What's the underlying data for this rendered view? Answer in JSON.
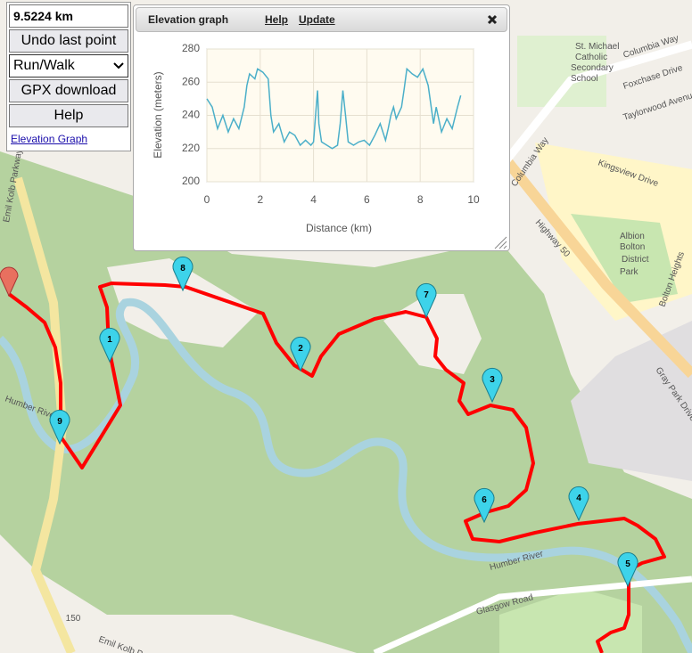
{
  "panel": {
    "distance": "9.5224 km",
    "undo": "Undo last point",
    "mode": "Run/Walk",
    "gpx": "GPX download",
    "help": "Help",
    "graph_link": "Elevation Graph"
  },
  "graph_window": {
    "title": "Elevation graph",
    "help": "Help",
    "update": "Update"
  },
  "chart_data": {
    "type": "line",
    "xlabel": "Distance (km)",
    "ylabel": "Elevation (meters)",
    "color": "#4bafc9",
    "x": [
      0,
      0.2,
      0.4,
      0.6,
      0.8,
      1.0,
      1.2,
      1.4,
      1.5,
      1.6,
      1.8,
      1.9,
      2.1,
      2.3,
      2.4,
      2.5,
      2.7,
      2.9,
      3.1,
      3.3,
      3.5,
      3.7,
      3.9,
      4.0,
      4.1,
      4.15,
      4.2,
      4.3,
      4.5,
      4.7,
      4.9,
      5.0,
      5.1,
      5.2,
      5.3,
      5.5,
      5.7,
      5.9,
      6.1,
      6.3,
      6.5,
      6.7,
      6.8,
      6.9,
      7.0,
      7.1,
      7.3,
      7.4,
      7.5,
      7.7,
      7.9,
      8.1,
      8.3,
      8.5,
      8.6,
      8.8,
      9.0,
      9.2,
      9.4,
      9.52
    ],
    "values": [
      250,
      245,
      232,
      240,
      230,
      238,
      232,
      245,
      258,
      265,
      262,
      268,
      266,
      262,
      240,
      230,
      235,
      224,
      230,
      228,
      222,
      225,
      222,
      224,
      245,
      255,
      235,
      224,
      222,
      220,
      222,
      235,
      255,
      240,
      224,
      222,
      224,
      225,
      222,
      228,
      235,
      225,
      232,
      240,
      245,
      238,
      245,
      256,
      268,
      265,
      263,
      268,
      258,
      235,
      245,
      230,
      238,
      232,
      245,
      252
    ],
    "xlim": [
      0,
      10
    ],
    "xticks": [
      0,
      2,
      4,
      6,
      8,
      10
    ],
    "ylim": [
      200,
      280
    ],
    "yticks": [
      200,
      220,
      240,
      260,
      280
    ],
    "grid": true
  },
  "map": {
    "labels": [
      "St. Michael",
      "Catholic",
      "Secondary",
      "School",
      "Columbia Way",
      "Foxchase Drive",
      "Taylorwood Avenue",
      "Kingsview Drive",
      "Columbia Way",
      "Highway 50",
      "Albion",
      "Bolton",
      "District",
      "Park",
      "Bolton Heights",
      "Gray Park Drive",
      "Emil Kolb Parkway",
      "Emil Kolb Parkway",
      "Humber River",
      "Humber River",
      "Glasgow Road",
      "150"
    ],
    "markers": [
      "1",
      "2",
      "3",
      "4",
      "5",
      "6",
      "7",
      "8",
      "9"
    ]
  }
}
